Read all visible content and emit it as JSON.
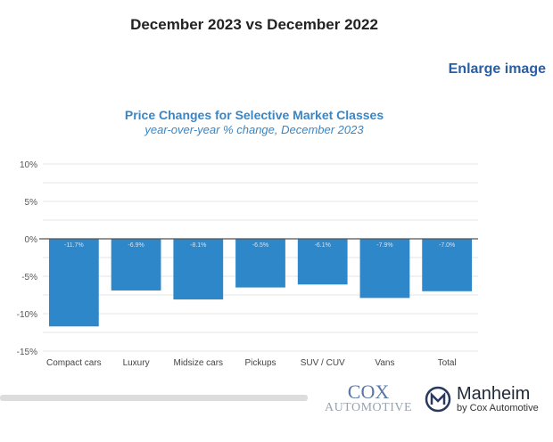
{
  "page": {
    "heading": "December 2023 vs December 2022",
    "enlarge_link": "Enlarge image"
  },
  "logos": {
    "cox_line1": "COX",
    "cox_line2": "AUTOMOTIVE",
    "manheim_name": "Manheim",
    "manheim_sub": "by Cox Automotive"
  },
  "chart_data": {
    "type": "bar",
    "title": "Price Changes for Selective Market Classes",
    "subtitle": "year-over-year % change, December 2023",
    "xlabel": "",
    "ylabel": "",
    "categories": [
      "Compact cars",
      "Luxury",
      "Midsize cars",
      "Pickups",
      "SUV / CUV",
      "Vans",
      "Total"
    ],
    "values": [
      -11.7,
      -6.9,
      -8.1,
      -6.5,
      -6.1,
      -7.9,
      -7.0
    ],
    "data_labels": [
      "-11.7%",
      "-6.9%",
      "-8.1%",
      "-6.5%",
      "-6.1%",
      "-7.9%",
      "-7.0%"
    ],
    "ylim": [
      -15,
      10
    ],
    "yticks": [
      10,
      5,
      0,
      -5,
      -10,
      -15
    ],
    "ytick_labels": [
      "10%",
      "5%",
      "0%",
      "-5%",
      "-10%",
      "-15%"
    ],
    "minor_gridlines_step": 2.5,
    "grid": true,
    "legend": "none",
    "bar_color": "#2e87c9"
  }
}
